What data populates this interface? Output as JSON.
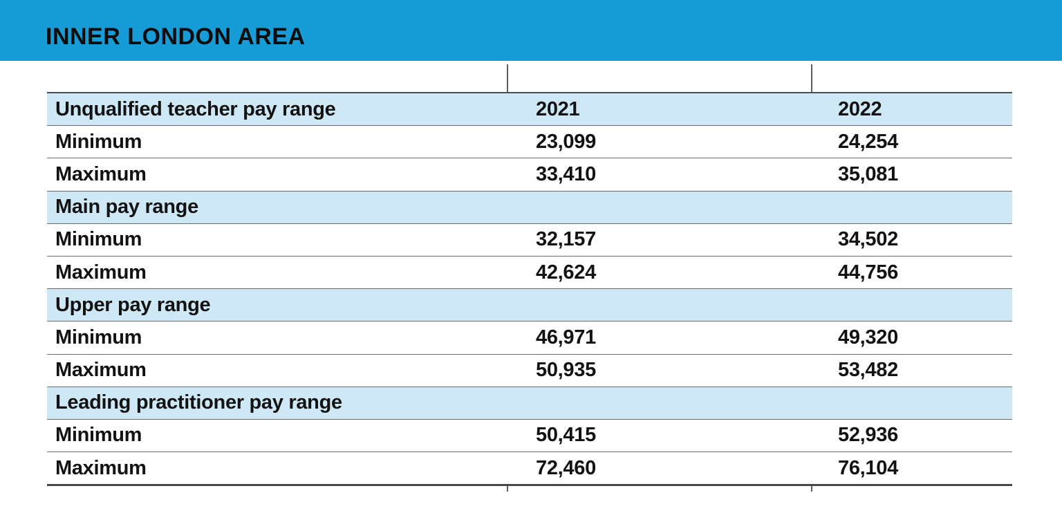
{
  "header": {
    "title": "INNER LONDON AREA"
  },
  "table": {
    "rows": [
      {
        "label": "Unqualified teacher pay range",
        "c2021": "2021",
        "c2022": "2022"
      },
      {
        "label": "Minimum",
        "c2021": "23,099",
        "c2022": "24,254"
      },
      {
        "label": "Maximum",
        "c2021": "33,410",
        "c2022": "35,081"
      },
      {
        "label": "Main pay range",
        "c2021": "",
        "c2022": ""
      },
      {
        "label": "Minimum",
        "c2021": "32,157",
        "c2022": "34,502"
      },
      {
        "label": "Maximum",
        "c2021": "42,624",
        "c2022": "44,756"
      },
      {
        "label": "Upper pay range",
        "c2021": "",
        "c2022": ""
      },
      {
        "label": "Minimum",
        "c2021": "46,971",
        "c2022": "49,320"
      },
      {
        "label": "Maximum",
        "c2021": "50,935",
        "c2022": "53,482"
      },
      {
        "label": "Leading practitioner pay range",
        "c2021": "",
        "c2022": ""
      },
      {
        "label": "Minimum",
        "c2021": "50,415",
        "c2022": "52,936"
      },
      {
        "label": "Maximum",
        "c2021": "72,460",
        "c2022": "76,104"
      }
    ]
  },
  "colors": {
    "header_bar": "#189cd8",
    "section_row": "#cfe8f6",
    "grid_line": "#6a6b6e",
    "text": "#121212"
  },
  "chart_data": {
    "type": "table",
    "title": "INNER LONDON AREA",
    "columns": [
      "",
      "2021",
      "2022"
    ],
    "sections": [
      {
        "name": "Unqualified teacher pay range",
        "rows": [
          {
            "label": "Minimum",
            "2021": 23099,
            "2022": 24254
          },
          {
            "label": "Maximum",
            "2021": 33410,
            "2022": 35081
          }
        ]
      },
      {
        "name": "Main pay range",
        "rows": [
          {
            "label": "Minimum",
            "2021": 32157,
            "2022": 34502
          },
          {
            "label": "Maximum",
            "2021": 42624,
            "2022": 44756
          }
        ]
      },
      {
        "name": "Upper pay range",
        "rows": [
          {
            "label": "Minimum",
            "2021": 46971,
            "2022": 49320
          },
          {
            "label": "Maximum",
            "2021": 50935,
            "2022": 53482
          }
        ]
      },
      {
        "name": "Leading practitioner pay range",
        "rows": [
          {
            "label": "Minimum",
            "2021": 50415,
            "2022": 52936
          },
          {
            "label": "Maximum",
            "2021": 72460,
            "2022": 76104
          }
        ]
      }
    ]
  }
}
